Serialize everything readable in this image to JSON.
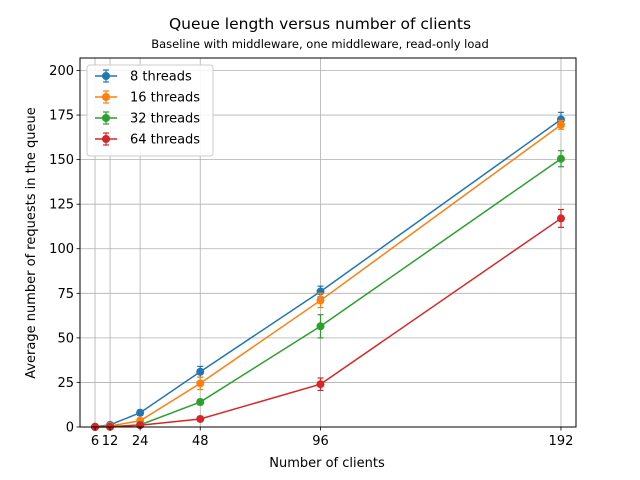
{
  "chart_data": {
    "type": "line",
    "title": "Queue length versus number of clients",
    "subtitle": "Baseline with middleware, one middleware, read-only load",
    "xlabel": "Number of clients",
    "ylabel": "Average number of requests in the queue",
    "x": [
      6,
      12,
      24,
      48,
      96,
      192
    ],
    "x_ticks": [
      "6",
      "12",
      "24",
      "48",
      "96",
      "192"
    ],
    "y_ticks": [
      "0",
      "25",
      "50",
      "75",
      "100",
      "125",
      "150",
      "175",
      "200"
    ],
    "xlim": [
      0,
      198
    ],
    "ylim": [
      0,
      207
    ],
    "grid": true,
    "legend_position": "top-left",
    "series": [
      {
        "name": "8 threads",
        "color": "#1f77b4",
        "values": [
          0.2,
          1.2,
          8.0,
          31.0,
          76.0,
          172.5
        ],
        "errors": [
          0.3,
          0.8,
          1.5,
          3.0,
          3.0,
          4.0
        ]
      },
      {
        "name": "16 threads",
        "color": "#ff7f0e",
        "values": [
          0.1,
          0.6,
          3.5,
          24.5,
          71.0,
          169.5
        ],
        "errors": [
          0.2,
          0.6,
          1.5,
          3.5,
          4.0,
          2.5
        ]
      },
      {
        "name": "32 threads",
        "color": "#2ca02c",
        "values": [
          0.1,
          0.2,
          1.2,
          14.0,
          56.5,
          150.5
        ],
        "errors": [
          0.2,
          0.3,
          1.0,
          1.5,
          6.5,
          4.5
        ]
      },
      {
        "name": "64 threads",
        "color": "#d62728",
        "values": [
          0.0,
          0.1,
          1.0,
          4.5,
          24.0,
          117.0
        ],
        "errors": [
          0.2,
          0.2,
          0.6,
          1.0,
          3.5,
          5.0
        ]
      }
    ]
  }
}
